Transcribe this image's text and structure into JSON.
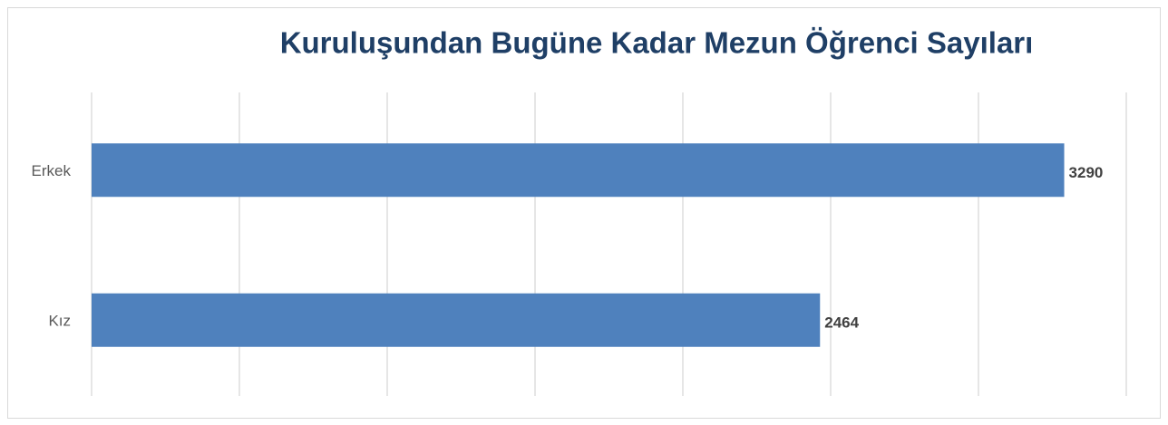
{
  "chart_data": {
    "type": "bar",
    "orientation": "horizontal",
    "title": "Kuruluşundan Bugüne Kadar Mezun Öğrenci Sayıları",
    "categories": [
      "Erkek",
      "Kız"
    ],
    "values": [
      3290,
      2464
    ],
    "color": "#4f81bd",
    "xlim": [
      0,
      3500
    ],
    "xticks": [
      0,
      500,
      1000,
      1500,
      2000,
      2500,
      3000,
      3500
    ],
    "grid": true
  }
}
